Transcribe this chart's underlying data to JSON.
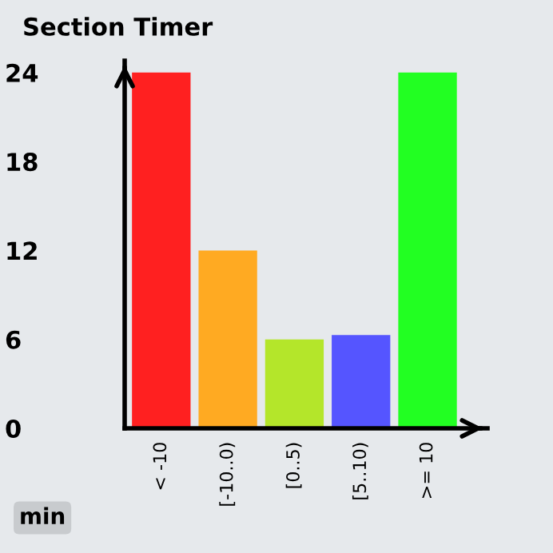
{
  "chart_data": {
    "type": "bar",
    "title": "Section Timer",
    "categories": [
      "< -10",
      "[-10..0)",
      "[0..5)",
      "[5..10)",
      ">= 10"
    ],
    "values": [
      24,
      12,
      6,
      6.3,
      24
    ],
    "colors": [
      "#ff2020",
      "#ffaa22",
      "#b4e62a",
      "#5555ff",
      "#22ff22"
    ],
    "ylim": [
      0,
      24.8
    ],
    "yticks": [
      0,
      6,
      12,
      18,
      24
    ],
    "grid": false,
    "legend": false,
    "annotations": [
      "min"
    ]
  }
}
